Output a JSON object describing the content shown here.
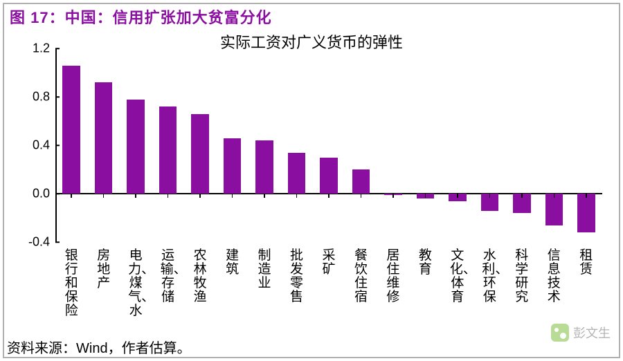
{
  "figure_label": "图 17：中国：信用扩张加大贫富分化",
  "chart": {
    "type": "bar",
    "title": "实际工资对广义货币的弹性",
    "title_fontsize": 22,
    "title_color": "#000000",
    "categories": [
      "银行和保险",
      "房地产",
      "电力、煤气、水",
      "运输、存储",
      "农林牧渔",
      "建筑",
      "制造业",
      "批发零售",
      "采矿",
      "餐饮住宿",
      "居住维修",
      "教育",
      "文化、体育",
      "水利、环保",
      "科学研究",
      "信息技术",
      "租赁"
    ],
    "values": [
      1.06,
      0.92,
      0.78,
      0.72,
      0.66,
      0.46,
      0.44,
      0.34,
      0.3,
      0.2,
      -0.01,
      -0.04,
      -0.06,
      -0.14,
      -0.16,
      -0.26,
      -0.32
    ],
    "bar_color": "#8a0fa0",
    "bar_width_ratio": 0.55,
    "ylim": [
      -0.4,
      1.2
    ],
    "ytick_step": 0.4,
    "yticks": [
      "-0.4",
      "0.0",
      "0.4",
      "0.8",
      "1.2"
    ],
    "axis_color": "#000000",
    "background_color": "#ffffff",
    "label_fontsize": 19,
    "ytick_fontsize": 18
  },
  "source_text": "资料来源：Wind，作者估算。",
  "watermark_text": "彭文生"
}
